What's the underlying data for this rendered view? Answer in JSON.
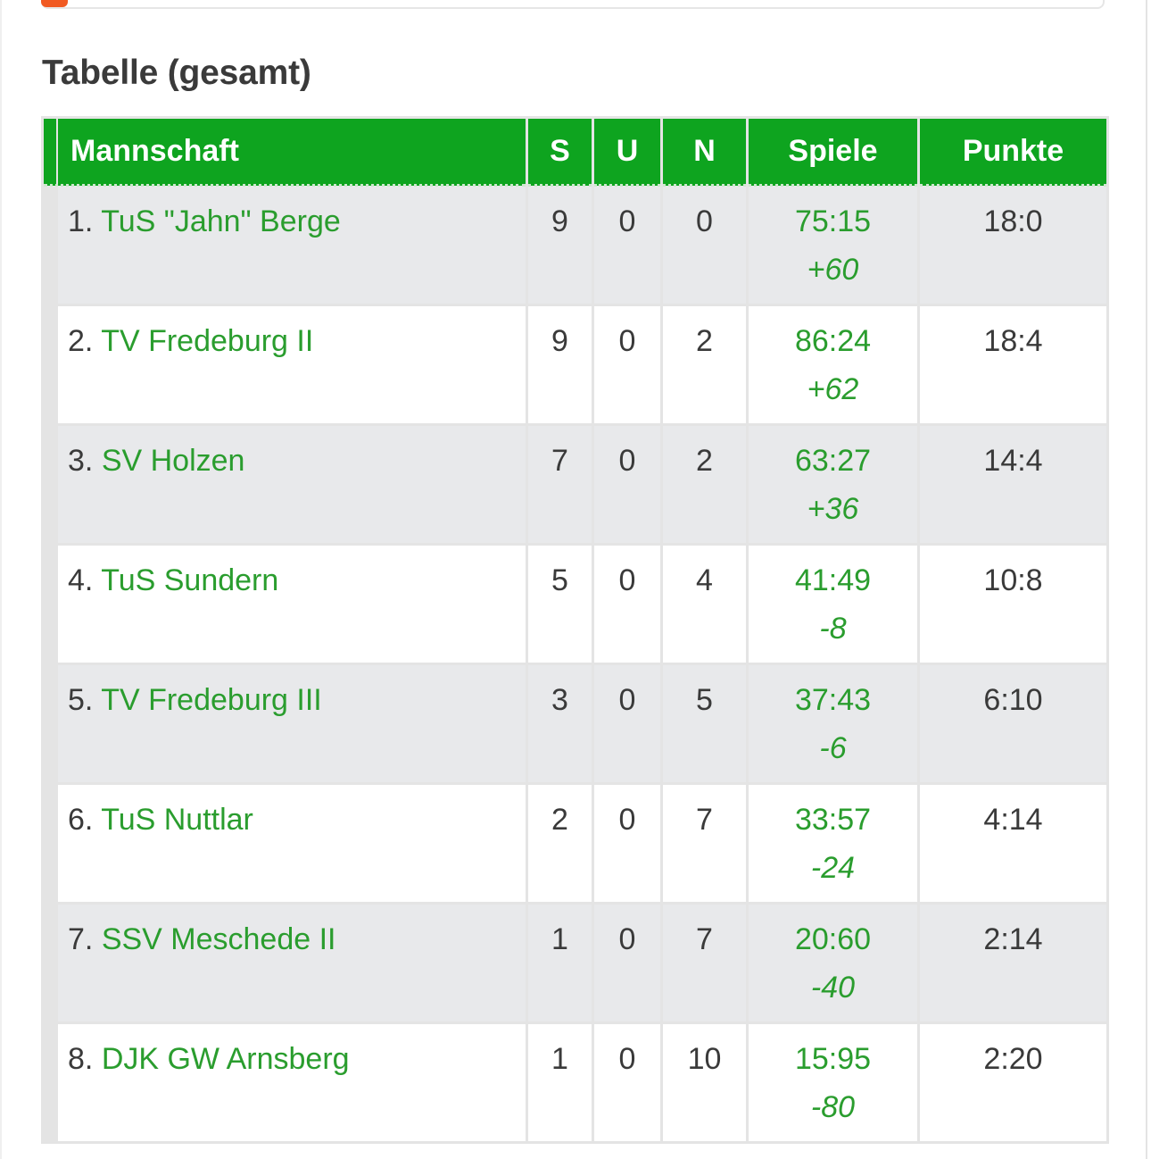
{
  "section_title": "Tabelle (gesamt)",
  "columns": {
    "team": "Mannschaft",
    "s": "S",
    "u": "U",
    "n": "N",
    "spiele": "Spiele",
    "punkte": "Punkte"
  },
  "rows": [
    {
      "rank": "1.",
      "team": "TuS \"Jahn\" Berge",
      "s": "9",
      "u": "0",
      "n": "0",
      "score": "75:15",
      "diff": "+60",
      "points": "18:0"
    },
    {
      "rank": "2.",
      "team": "TV Fredeburg II",
      "s": "9",
      "u": "0",
      "n": "2",
      "score": "86:24",
      "diff": "+62",
      "points": "18:4"
    },
    {
      "rank": "3.",
      "team": "SV Holzen",
      "s": "7",
      "u": "0",
      "n": "2",
      "score": "63:27",
      "diff": "+36",
      "points": "14:4"
    },
    {
      "rank": "4.",
      "team": "TuS Sundern",
      "s": "5",
      "u": "0",
      "n": "4",
      "score": "41:49",
      "diff": "-8",
      "points": "10:8"
    },
    {
      "rank": "5.",
      "team": "TV Fredeburg III",
      "s": "3",
      "u": "0",
      "n": "5",
      "score": "37:43",
      "diff": "-6",
      "points": "6:10"
    },
    {
      "rank": "6.",
      "team": "TuS Nuttlar",
      "s": "2",
      "u": "0",
      "n": "7",
      "score": "33:57",
      "diff": "-24",
      "points": "4:14"
    },
    {
      "rank": "7.",
      "team": "SSV Meschede II",
      "s": "1",
      "u": "0",
      "n": "7",
      "score": "20:60",
      "diff": "-40",
      "points": "2:14"
    },
    {
      "rank": "8.",
      "team": "DJK GW Arnsberg",
      "s": "1",
      "u": "0",
      "n": "10",
      "score": "15:95",
      "diff": "-80",
      "points": "2:20"
    }
  ],
  "colors": {
    "header_green": "#0ea41f",
    "link_green": "#2a9d2e",
    "accent_orange": "#f15a22",
    "row_alt": "#e8e9eb"
  }
}
